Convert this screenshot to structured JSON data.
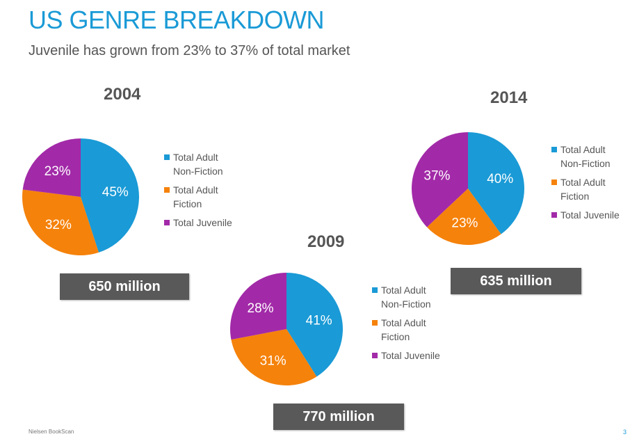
{
  "title": "US GENRE BREAKDOWN",
  "subtitle": "Juvenile has grown from 23% to 37% of total market",
  "footer": {
    "source": "Nielsen BookScan",
    "page": "3"
  },
  "colors": {
    "nonfiction": "#1a9ad6",
    "fiction": "#f5820b",
    "juvenile": "#a22aa8"
  },
  "chart_data": [
    {
      "type": "pie",
      "title": "2004",
      "total": "650 million",
      "categories": [
        "Total Adult Non-Fiction",
        "Total Adult Fiction",
        "Total Juvenile"
      ],
      "values": [
        45,
        32,
        23
      ],
      "labels": [
        "45%",
        "32%",
        "23%"
      ],
      "legend": [
        "Total Adult",
        "Non-Fiction",
        "Total Adult",
        "Fiction",
        "Total Juvenile"
      ]
    },
    {
      "type": "pie",
      "title": "2009",
      "total": "770 million",
      "categories": [
        "Total Adult Non-Fiction",
        "Total Adult Fiction",
        "Total Juvenile"
      ],
      "values": [
        41,
        31,
        28
      ],
      "labels": [
        "41%",
        "31%",
        "28%"
      ],
      "legend": [
        "Total Adult",
        "Non-Fiction",
        "Total Adult",
        "Fiction",
        "Total Juvenile"
      ]
    },
    {
      "type": "pie",
      "title": "2014",
      "total": "635 million",
      "categories": [
        "Total Adult Non-Fiction",
        "Total Adult Fiction",
        "Total Juvenile"
      ],
      "values": [
        40,
        23,
        37
      ],
      "labels": [
        "40%",
        "23%",
        "37%"
      ],
      "legend": [
        "Total Adult",
        "Non-Fiction",
        "Total Adult",
        "Fiction",
        "Total Juvenile"
      ]
    }
  ]
}
